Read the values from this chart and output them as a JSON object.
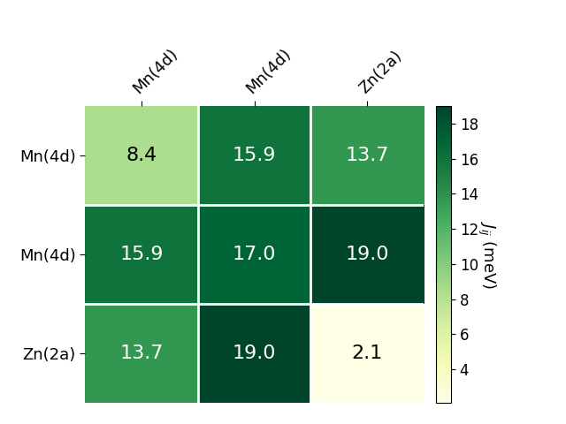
{
  "matrix": [
    [
      8.4,
      15.9,
      13.7
    ],
    [
      15.9,
      17.0,
      19.0
    ],
    [
      13.7,
      19.0,
      2.1
    ]
  ],
  "row_labels": [
    "Mn(4d)",
    "Mn(4d)",
    "Zn(2a)"
  ],
  "col_labels": [
    "Mn(4d)",
    "Mn(4d)",
    "Zn(2a)"
  ],
  "colorbar_label": "$J_{ij}$ (meV)",
  "vmin": 2.1,
  "vmax": 19.0,
  "cmap": "YlGn",
  "text_color_threshold": 12.0,
  "fontsize_values": 16,
  "fontsize_labels": 13,
  "fontsize_colorbar": 12,
  "colorbar_ticks": [
    4,
    6,
    8,
    10,
    12,
    14,
    16,
    18
  ],
  "figsize": [
    6.4,
    4.8
  ],
  "dpi": 100
}
